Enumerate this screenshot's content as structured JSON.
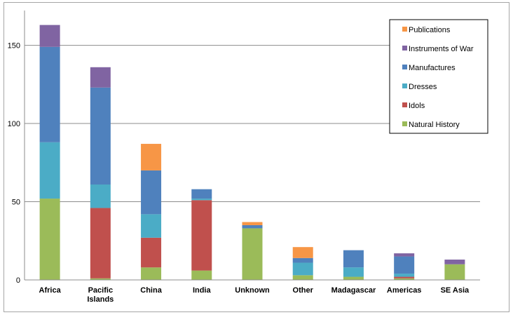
{
  "chart_data": {
    "type": "bar",
    "stacked": true,
    "title": "",
    "xlabel": "",
    "ylabel": "",
    "ylim": [
      0,
      170
    ],
    "yticks": [
      0,
      50,
      100,
      150
    ],
    "grid": true,
    "legend_position": "top-right",
    "categories": [
      [
        "Africa"
      ],
      [
        "Pacific",
        "Islands"
      ],
      [
        "China"
      ],
      [
        "India"
      ],
      [
        "Unknown"
      ],
      [
        "Other"
      ],
      [
        "Madagascar"
      ],
      [
        "Americas"
      ],
      [
        "SE Asia"
      ]
    ],
    "series": [
      {
        "name": "Natural History",
        "color": "#9bbb59",
        "values": [
          52,
          1,
          8,
          6,
          33,
          3,
          2,
          1,
          10
        ]
      },
      {
        "name": "Idols",
        "color": "#c0504d",
        "values": [
          0,
          45,
          19,
          45,
          0,
          0,
          0,
          1,
          0
        ]
      },
      {
        "name": "Dresses",
        "color": "#4bacc6",
        "values": [
          36,
          15,
          15,
          1,
          0,
          8,
          6,
          2,
          0
        ]
      },
      {
        "name": "Manufactures",
        "color": "#4f81bd",
        "values": [
          61,
          62,
          28,
          6,
          2,
          3,
          11,
          11,
          0
        ]
      },
      {
        "name": "Instruments of War",
        "color": "#8064a2",
        "values": [
          14,
          13,
          0,
          0,
          0,
          0,
          0,
          2,
          3
        ]
      },
      {
        "name": "Publications",
        "color": "#f79646",
        "values": [
          0,
          0,
          17,
          0,
          2,
          7,
          0,
          0,
          0
        ]
      }
    ]
  }
}
